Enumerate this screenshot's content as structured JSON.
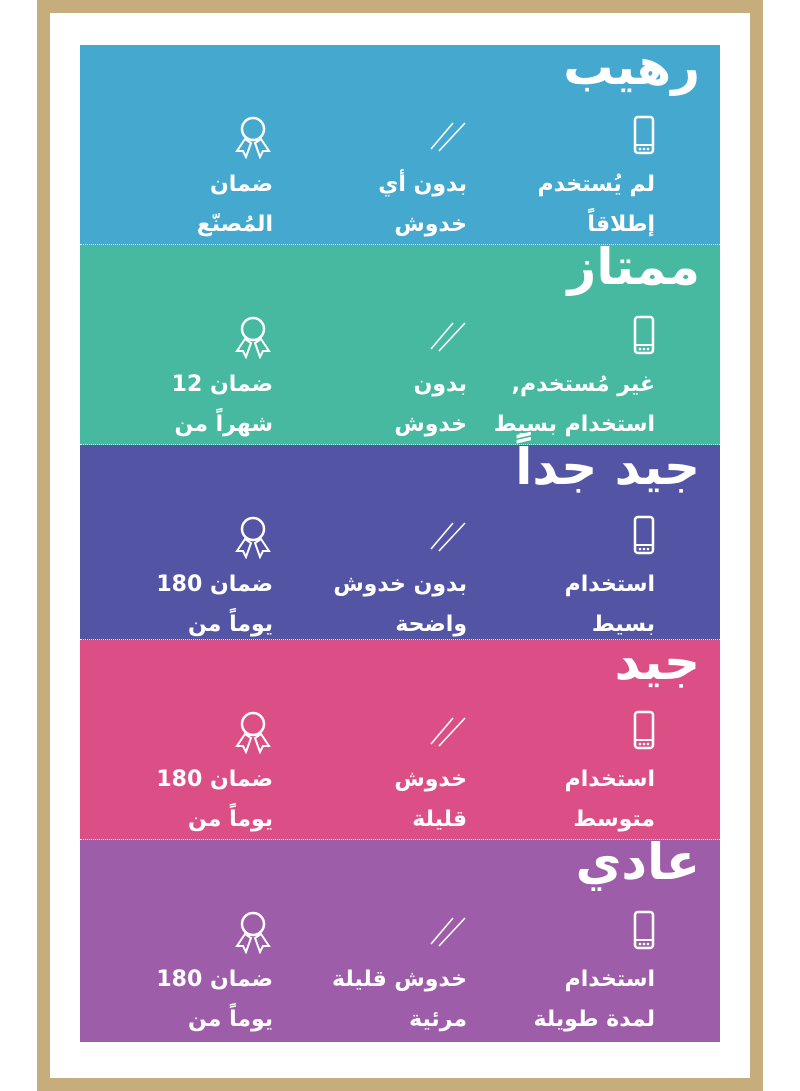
{
  "colors": {
    "frame": "#c8ad7c"
  },
  "bands": [
    {
      "title": "رهيب",
      "color": "#45a9cf",
      "usage": [
        "لم يُستخدم",
        "إطلاقاً"
      ],
      "scratches": [
        "بدون أي",
        "خدوش"
      ],
      "warranty": [
        "ضمان",
        "المُصنّع"
      ]
    },
    {
      "title": "ممتاز",
      "color": "#47b9a0",
      "usage": [
        "غير مُستخدم,",
        "استخدام بسيط"
      ],
      "scratches": [
        "بدون",
        "خدوش"
      ],
      "warranty": [
        "ضمان 12",
        "شهراً من"
      ]
    },
    {
      "title": "جيد جداً",
      "color": "#5354a4",
      "usage": [
        "استخدام",
        "بسيط"
      ],
      "scratches": [
        "بدون خدوش",
        "واضحة"
      ],
      "warranty": [
        "ضمان 180",
        "يوماً من"
      ]
    },
    {
      "title": "جيد",
      "color": "#db4f86",
      "usage": [
        "استخدام",
        "متوسط"
      ],
      "scratches": [
        "خدوش",
        "قليلة"
      ],
      "warranty": [
        "ضمان 180",
        "يوماً من"
      ]
    },
    {
      "title": "عادي",
      "color": "#9d5da8",
      "usage": [
        "استخدام",
        "لمدة طويلة"
      ],
      "scratches": [
        "خدوش قليلة",
        "مرئية"
      ],
      "warranty": [
        "ضمان 180",
        "يوماً من"
      ]
    }
  ],
  "icons": {
    "usage": "phone-icon",
    "scratches": "scratch-icon",
    "warranty": "award-ribbon-icon"
  }
}
